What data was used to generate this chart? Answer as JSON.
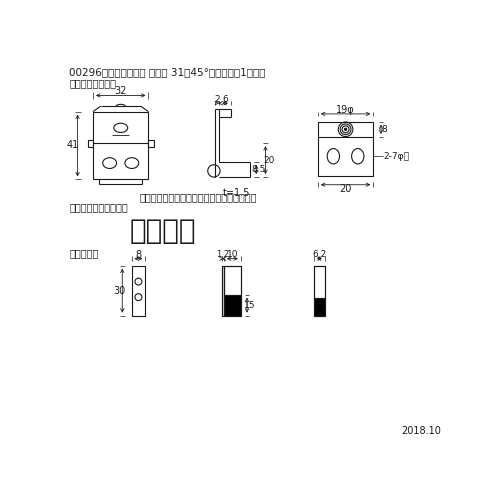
{
  "title": "00296（受）傾斜吹戸 脱着式 31～45°前セット（1枚分）",
  "background_color": "#ffffff",
  "line_color": "#1a1a1a",
  "text_color": "#1a1a1a",
  "sec1_label": "・傾斜ホルダー上",
  "sec2_label": "・傾斜ホルダー下前用",
  "sec3_label": "・端カバー",
  "center_text": "都度設定",
  "note_text": "付属品：パネル固定パーツ、ワッシャー付き",
  "date_text": "2018.10",
  "t_note": "t=1.5"
}
